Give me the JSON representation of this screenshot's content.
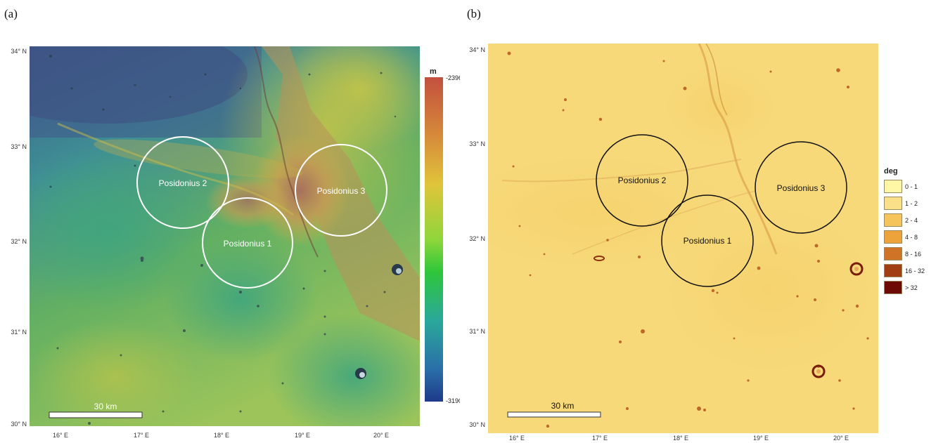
{
  "panels": {
    "a": {
      "label": "(a)",
      "lat_ticks": [
        "34° N",
        "33° N",
        "32° N",
        "31° N",
        "30° N"
      ],
      "lon_ticks": [
        "16° E",
        "17° E",
        "18° E",
        "19° E",
        "20° E"
      ],
      "regions": [
        "Posidonius 1",
        "Posidonius 2",
        "Posidonius 3"
      ],
      "scale_bar": "30 km",
      "legend": {
        "unit": "m",
        "max": "-2396",
        "min": "-3190"
      }
    },
    "b": {
      "label": "(b)",
      "lat_ticks": [
        "34° N",
        "33° N",
        "32° N",
        "31° N",
        "30° N"
      ],
      "lon_ticks": [
        "16° E",
        "17° E",
        "18° E",
        "19° E",
        "20° E"
      ],
      "regions": [
        "Posidonius 1",
        "Posidonius 2",
        "Posidonius 3"
      ],
      "scale_bar": "30 km",
      "legend": {
        "title": "deg",
        "classes": [
          {
            "label": "0 - 1",
            "color": "#fff7a6"
          },
          {
            "label": "1 - 2",
            "color": "#fbe08a"
          },
          {
            "label": "2 - 4",
            "color": "#f5c55c"
          },
          {
            "label": "4 - 8",
            "color": "#eda33a"
          },
          {
            "label": "8 - 16",
            "color": "#cf7326"
          },
          {
            "label": "16 - 32",
            "color": "#a23e14"
          },
          {
            "label": "> 32",
            "color": "#6e0a05"
          }
        ]
      }
    }
  }
}
